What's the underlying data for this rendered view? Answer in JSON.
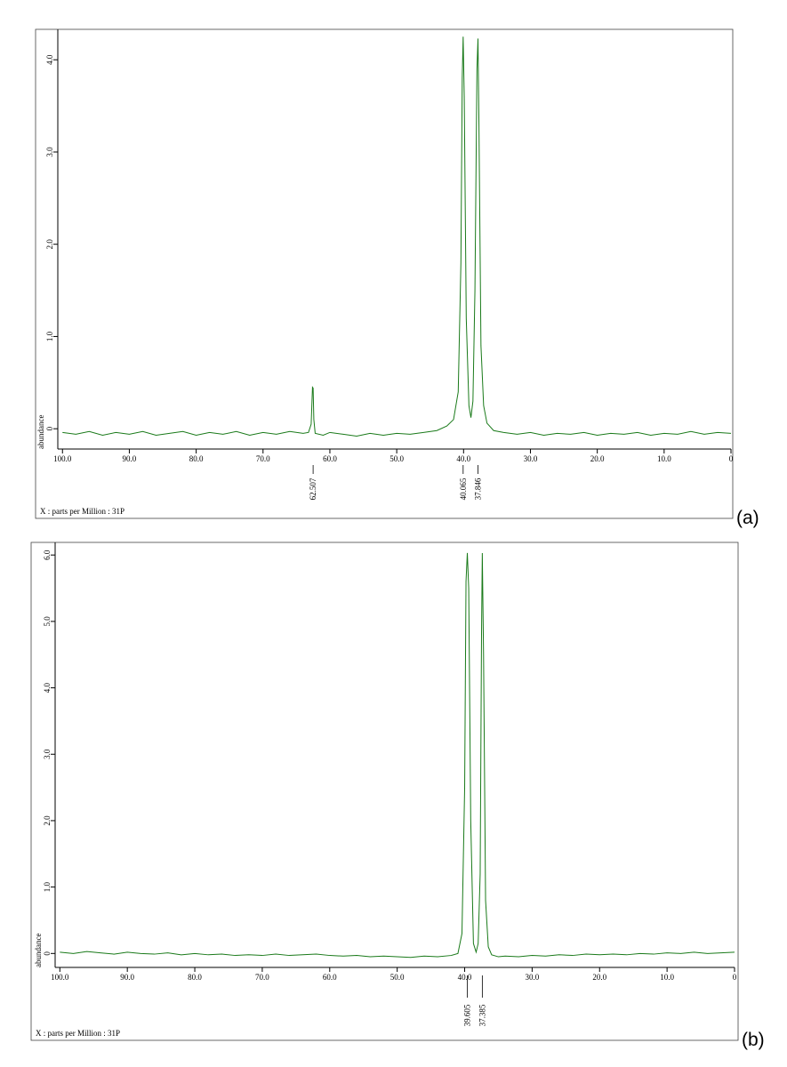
{
  "chart_data": [
    {
      "type": "line",
      "panel_label": "(a)",
      "x_label": "X : parts per Million : 31P",
      "y_label": "abundance",
      "xlim": [
        100.7,
        0
      ],
      "ylim": [
        -0.22,
        4.33
      ],
      "xticks": [
        {
          "value": 100,
          "label": "100.0"
        },
        {
          "value": 90,
          "label": "90.0"
        },
        {
          "value": 80,
          "label": "80.0"
        },
        {
          "value": 70,
          "label": "70.0"
        },
        {
          "value": 60,
          "label": "60.0"
        },
        {
          "value": 50,
          "label": "50.0"
        },
        {
          "value": 40,
          "label": "40.0"
        },
        {
          "value": 30,
          "label": "30.0"
        },
        {
          "value": 20,
          "label": "20.0"
        },
        {
          "value": 10,
          "label": "10.0"
        },
        0
      ],
      "yticks": [
        0,
        {
          "value": 1,
          "label": "1.0"
        },
        {
          "value": 2,
          "label": "2.0"
        },
        {
          "value": 3,
          "label": "3.0"
        },
        {
          "value": 4,
          "label": "4.0"
        }
      ],
      "peak_labels": [
        62.507,
        40.065,
        37.846
      ],
      "series": [
        {
          "color": "#1a7a1a",
          "x": [
            100,
            98,
            96,
            94,
            92,
            90,
            88,
            86,
            84,
            82,
            80,
            78,
            76,
            74,
            72,
            70,
            68,
            66,
            64,
            63.2,
            62.8,
            62.6,
            62.507,
            62.4,
            62.2,
            61,
            60,
            58,
            56,
            54,
            52,
            50,
            48,
            46,
            44,
            42.5,
            41.5,
            40.8,
            40.4,
            40.2,
            40.065,
            39.9,
            39.6,
            39.2,
            38.9,
            38.6,
            38.3,
            38.0,
            37.846,
            37.7,
            37.4,
            37.0,
            36.5,
            35.5,
            34,
            32,
            30,
            28,
            26,
            24,
            22,
            20,
            18,
            16,
            14,
            12,
            10,
            8,
            6,
            4,
            2,
            0
          ],
          "values": [
            -0.04,
            -0.06,
            -0.03,
            -0.07,
            -0.04,
            -0.06,
            -0.03,
            -0.07,
            -0.05,
            -0.03,
            -0.07,
            -0.04,
            -0.06,
            -0.03,
            -0.07,
            -0.04,
            -0.06,
            -0.03,
            -0.05,
            -0.04,
            0.05,
            0.45,
            0.44,
            0.1,
            -0.05,
            -0.07,
            -0.04,
            -0.06,
            -0.08,
            -0.05,
            -0.07,
            -0.05,
            -0.06,
            -0.04,
            -0.02,
            0.03,
            0.1,
            0.4,
            1.8,
            3.8,
            4.25,
            3.6,
            1.2,
            0.25,
            0.12,
            0.3,
            1.5,
            3.9,
            4.23,
            3.3,
            0.9,
            0.25,
            0.06,
            -0.02,
            -0.04,
            -0.06,
            -0.04,
            -0.07,
            -0.05,
            -0.06,
            -0.04,
            -0.07,
            -0.05,
            -0.06,
            -0.04,
            -0.07,
            -0.05,
            -0.06,
            -0.03,
            -0.06,
            -0.04,
            -0.05
          ]
        }
      ]
    },
    {
      "type": "line",
      "panel_label": "(b)",
      "x_label": "X : parts per Million : 31P",
      "y_label": "abundance",
      "xlim": [
        100.7,
        0
      ],
      "ylim": [
        -0.21,
        6.19
      ],
      "xticks": [
        {
          "value": 100,
          "label": "100.0"
        },
        {
          "value": 90,
          "label": "90.0"
        },
        {
          "value": 80,
          "label": "80.0"
        },
        {
          "value": 70,
          "label": "70.0"
        },
        {
          "value": 60,
          "label": "60.0"
        },
        {
          "value": 50,
          "label": "50.0"
        },
        {
          "value": 40,
          "label": "40.0"
        },
        {
          "value": 30,
          "label": "30.0"
        },
        {
          "value": 20,
          "label": "20.0"
        },
        {
          "value": 10,
          "label": "10.0"
        },
        0
      ],
      "yticks": [
        0,
        {
          "value": 1,
          "label": "1.0"
        },
        {
          "value": 2,
          "label": "2.0"
        },
        {
          "value": 3,
          "label": "3.0"
        },
        {
          "value": 4,
          "label": "4.0"
        },
        {
          "value": 5,
          "label": "5.0"
        },
        {
          "value": 6,
          "label": "6.0"
        }
      ],
      "peak_labels": [
        39.605,
        37.385
      ],
      "series": [
        {
          "color": "#1a7a1a",
          "x": [
            100,
            98,
            96,
            94,
            92,
            90,
            88,
            86,
            84,
            82,
            80,
            78,
            76,
            74,
            72,
            70,
            68,
            66,
            64,
            62,
            60,
            58,
            56,
            54,
            52,
            50,
            48,
            46,
            44,
            42,
            41,
            40.4,
            40.0,
            39.8,
            39.605,
            39.4,
            39.1,
            38.7,
            38.3,
            38.0,
            37.7,
            37.5,
            37.385,
            37.2,
            36.9,
            36.5,
            36,
            35,
            34,
            32,
            30,
            28,
            26,
            24,
            22,
            20,
            18,
            16,
            14,
            12,
            10,
            8,
            6,
            4,
            2,
            0
          ],
          "values": [
            0.02,
            0.0,
            0.03,
            0.01,
            -0.01,
            0.02,
            0.0,
            -0.01,
            0.01,
            -0.02,
            0.0,
            -0.02,
            -0.01,
            -0.03,
            -0.02,
            -0.03,
            -0.01,
            -0.03,
            -0.02,
            -0.01,
            -0.03,
            -0.04,
            -0.03,
            -0.05,
            -0.04,
            -0.05,
            -0.06,
            -0.04,
            -0.05,
            -0.03,
            0.0,
            0.3,
            2.5,
            5.6,
            6.03,
            5.5,
            2.0,
            0.15,
            0.02,
            0.15,
            1.2,
            4.8,
            6.03,
            4.5,
            0.8,
            0.1,
            -0.02,
            -0.05,
            -0.04,
            -0.05,
            -0.03,
            -0.04,
            -0.02,
            -0.03,
            -0.01,
            -0.02,
            -0.01,
            -0.02,
            0.0,
            -0.01,
            0.01,
            0.0,
            0.02,
            0.0,
            0.01,
            0.02
          ]
        }
      ]
    }
  ]
}
